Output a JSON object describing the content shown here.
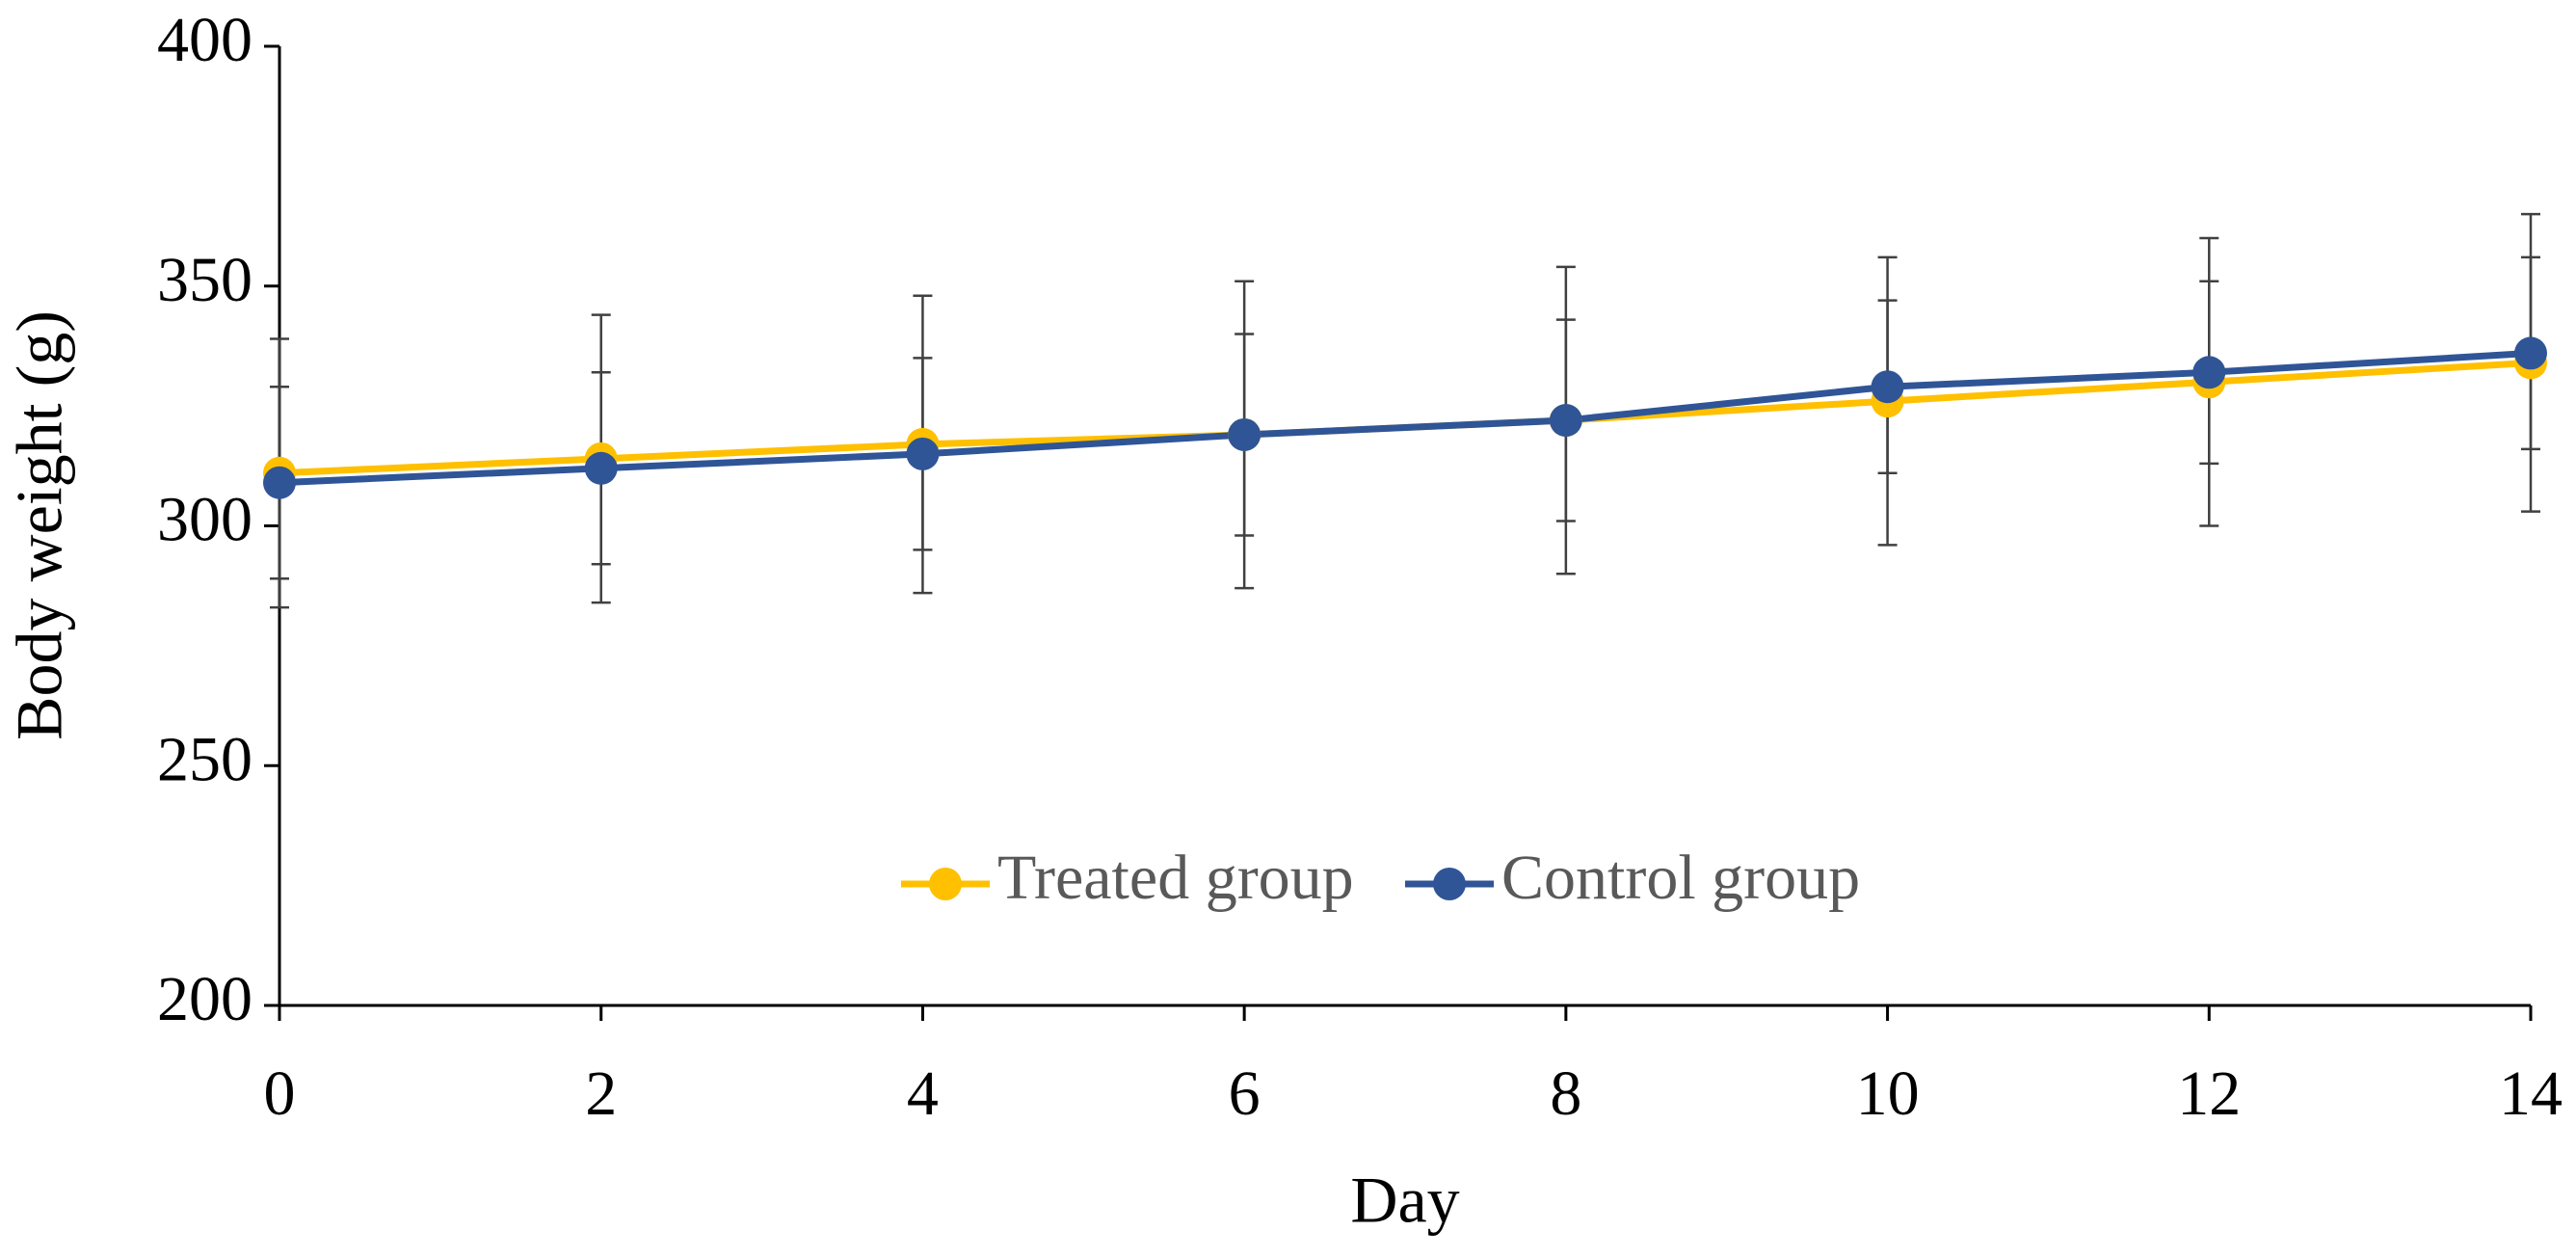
{
  "chart_data": {
    "type": "line",
    "x_label": "Day",
    "y_label": "Body weight (g)",
    "x": [
      0,
      2,
      4,
      6,
      8,
      10,
      12,
      14
    ],
    "xlim": [
      0,
      14
    ],
    "xticks": [
      0,
      2,
      4,
      6,
      8,
      10,
      12,
      14
    ],
    "ylim": [
      200,
      400
    ],
    "yticks": [
      200,
      250,
      300,
      350,
      400
    ],
    "legend": "bottom-center",
    "series": [
      {
        "name": "Treated group",
        "color": "#ffc000",
        "values": [
          311,
          314,
          317,
          319,
          322,
          326,
          330,
          334
        ],
        "errors": [
          28,
          30,
          31,
          32,
          32,
          30,
          30,
          31
        ]
      },
      {
        "name": "Control group",
        "color": "#2f5597",
        "values": [
          309,
          312,
          315,
          319,
          322,
          329,
          332,
          336
        ],
        "errors": [
          20,
          20,
          20,
          21,
          21,
          18,
          19,
          20
        ]
      }
    ]
  }
}
